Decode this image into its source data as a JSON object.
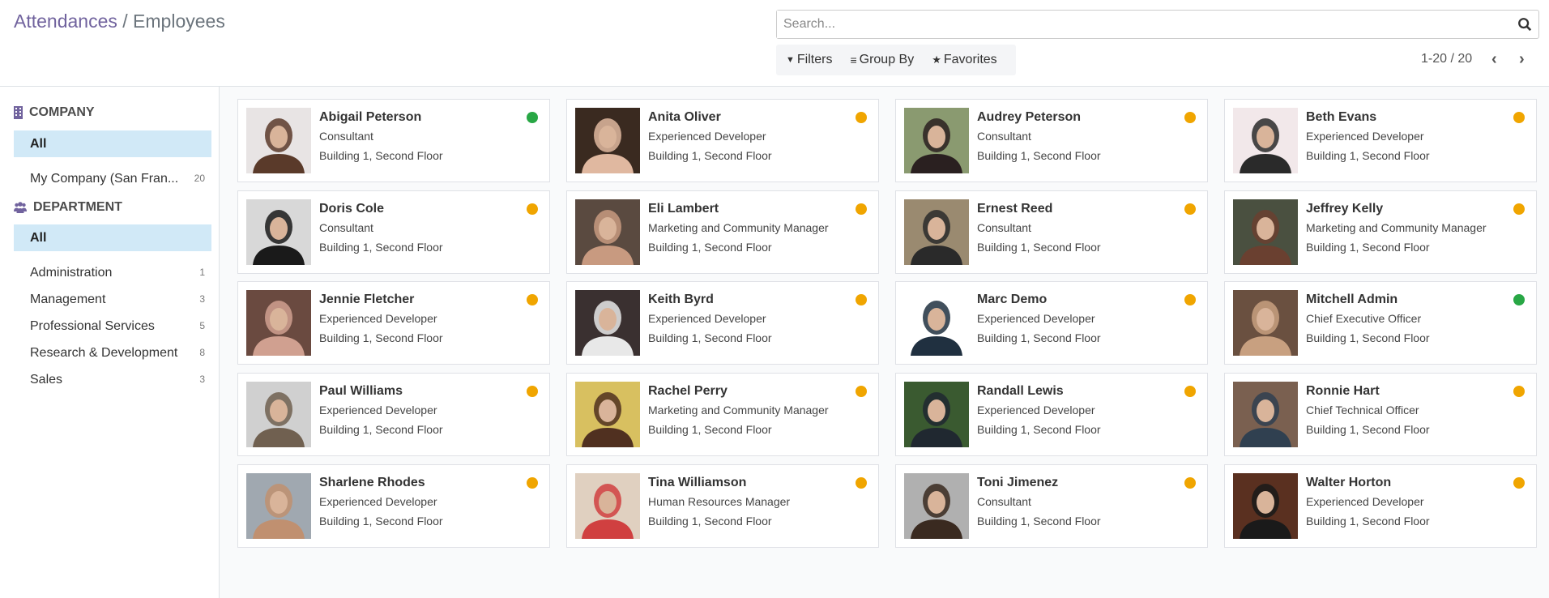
{
  "breadcrumb": {
    "parent": "Attendances",
    "separator": "/",
    "current": "Employees"
  },
  "search": {
    "placeholder": "Search...",
    "icon": "search-icon"
  },
  "filters": {
    "filters_label": "Filters",
    "groupby_label": "Group By",
    "favorites_label": "Favorites"
  },
  "pager": {
    "text": "1-20 / 20"
  },
  "colors": {
    "accent": "#71639e",
    "present": "#28a745",
    "absent": "#f0a500",
    "selected_bg": "#d1e9f7"
  },
  "sidebar": {
    "company": {
      "title": "COMPANY",
      "items": [
        {
          "label": "All",
          "active": true
        },
        {
          "label": "My Company (San Fran...",
          "count": "20"
        }
      ]
    },
    "department": {
      "title": "DEPARTMENT",
      "items": [
        {
          "label": "All",
          "active": true
        },
        {
          "label": "Administration",
          "count": "1"
        },
        {
          "label": "Management",
          "count": "3"
        },
        {
          "label": "Professional Services",
          "count": "5"
        },
        {
          "label": "Research & Development",
          "count": "8"
        },
        {
          "label": "Sales",
          "count": "3"
        }
      ]
    }
  },
  "employees": [
    {
      "name": "Abigail Peterson",
      "job": "Consultant",
      "location": "Building 1, Second Floor",
      "status": "present",
      "photo": [
        "#e8e4e4",
        "#5a3a2a"
      ]
    },
    {
      "name": "Anita Oliver",
      "job": "Experienced Developer",
      "location": "Building 1, Second Floor",
      "status": "absent",
      "photo": [
        "#3a2a20",
        "#e0b8a0"
      ]
    },
    {
      "name": "Audrey Peterson",
      "job": "Consultant",
      "location": "Building 1, Second Floor",
      "status": "absent",
      "photo": [
        "#8a9a70",
        "#2a2020"
      ]
    },
    {
      "name": "Beth Evans",
      "job": "Experienced Developer",
      "location": "Building 1, Second Floor",
      "status": "absent",
      "photo": [
        "#f2e8ea",
        "#2a2a2a"
      ]
    },
    {
      "name": "Doris Cole",
      "job": "Consultant",
      "location": "Building 1, Second Floor",
      "status": "absent",
      "photo": [
        "#d8d8d8",
        "#1a1a1a"
      ]
    },
    {
      "name": "Eli Lambert",
      "job": "Marketing and Community Manager",
      "location": "Building 1, Second Floor",
      "status": "absent",
      "photo": [
        "#5a4a40",
        "#c89a80"
      ]
    },
    {
      "name": "Ernest Reed",
      "job": "Consultant",
      "location": "Building 1, Second Floor",
      "status": "absent",
      "photo": [
        "#9a8a70",
        "#2a2a2a"
      ]
    },
    {
      "name": "Jeffrey Kelly",
      "job": "Marketing and Community Manager",
      "location": "Building 1, Second Floor",
      "status": "absent",
      "photo": [
        "#4a5040",
        "#6a4030"
      ]
    },
    {
      "name": "Jennie Fletcher",
      "job": "Experienced Developer",
      "location": "Building 1, Second Floor",
      "status": "absent",
      "photo": [
        "#6a4a40",
        "#d0a090"
      ]
    },
    {
      "name": "Keith Byrd",
      "job": "Experienced Developer",
      "location": "Building 1, Second Floor",
      "status": "absent",
      "photo": [
        "#3a3030",
        "#e8e8e8"
      ]
    },
    {
      "name": "Marc Demo",
      "job": "Experienced Developer",
      "location": "Building 1, Second Floor",
      "status": "absent",
      "photo": [
        "#ffffff",
        "#203040"
      ]
    },
    {
      "name": "Mitchell Admin",
      "job": "Chief Executive Officer",
      "location": "Building 1, Second Floor",
      "status": "present",
      "photo": [
        "#6a5040",
        "#c8a080"
      ]
    },
    {
      "name": "Paul Williams",
      "job": "Experienced Developer",
      "location": "Building 1, Second Floor",
      "status": "absent",
      "photo": [
        "#d0d0d0",
        "#706050"
      ]
    },
    {
      "name": "Rachel Perry",
      "job": "Marketing and Community Manager",
      "location": "Building 1, Second Floor",
      "status": "absent",
      "photo": [
        "#d8c060",
        "#503020"
      ]
    },
    {
      "name": "Randall Lewis",
      "job": "Experienced Developer",
      "location": "Building 1, Second Floor",
      "status": "absent",
      "photo": [
        "#3a5a30",
        "#202830"
      ]
    },
    {
      "name": "Ronnie Hart",
      "job": "Chief Technical Officer",
      "location": "Building 1, Second Floor",
      "status": "absent",
      "photo": [
        "#7a6050",
        "#304050"
      ]
    },
    {
      "name": "Sharlene Rhodes",
      "job": "Experienced Developer",
      "location": "Building 1, Second Floor",
      "status": "absent",
      "photo": [
        "#a0a8b0",
        "#c09070"
      ]
    },
    {
      "name": "Tina Williamson",
      "job": "Human Resources Manager",
      "location": "Building 1, Second Floor",
      "status": "absent",
      "photo": [
        "#e0d0c0",
        "#d04040"
      ]
    },
    {
      "name": "Toni Jimenez",
      "job": "Consultant",
      "location": "Building 1, Second Floor",
      "status": "absent",
      "photo": [
        "#b0b0b0",
        "#3a2a20"
      ]
    },
    {
      "name": "Walter Horton",
      "job": "Experienced Developer",
      "location": "Building 1, Second Floor",
      "status": "absent",
      "photo": [
        "#5a3020",
        "#1a1a1a"
      ]
    }
  ]
}
